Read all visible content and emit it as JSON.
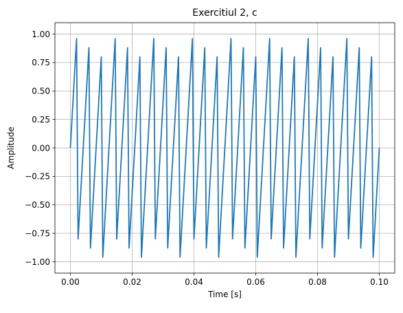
{
  "chart_data": {
    "type": "line",
    "title": "Exercitiul 2, c",
    "xlabel": "Time [s]",
    "ylabel": "Amplitude",
    "xlim": [
      -0.005,
      0.105
    ],
    "ylim": [
      -1.1,
      1.1
    ],
    "x_ticks": [
      0.0,
      0.02,
      0.04,
      0.06,
      0.08,
      0.1
    ],
    "x_tick_labels": [
      "0.00",
      "0.02",
      "0.04",
      "0.06",
      "0.08",
      "0.10"
    ],
    "y_ticks": [
      -1.0,
      -0.75,
      -0.5,
      -0.25,
      0.0,
      0.25,
      0.5,
      0.75,
      1.0
    ],
    "y_tick_labels": [
      "−1.00",
      "−0.75",
      "−0.50",
      "−0.25",
      "0.00",
      "0.25",
      "0.50",
      "0.75",
      "1.00"
    ],
    "grid": true,
    "series": [
      {
        "color": "#1f77b4",
        "signal": "sawtooth",
        "frequency_hz": 240,
        "sample_interval_s": 0.0005,
        "x_start": 0.0,
        "x_end": 0.1
      }
    ]
  }
}
